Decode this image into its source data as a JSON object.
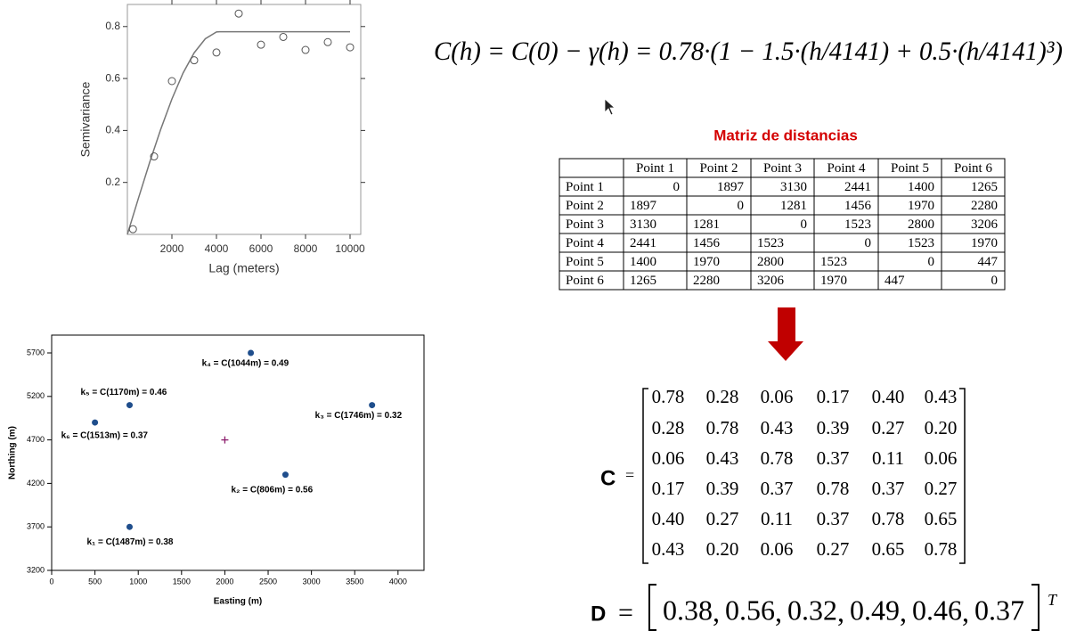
{
  "chart_data": [
    {
      "type": "scatter",
      "xlabel": "Lag (meters)",
      "ylabel": "Semivariance",
      "xlim": [
        0,
        10480
      ],
      "ylim": [
        0,
        0.885
      ],
      "xticks": [
        2000,
        4000,
        6000,
        8000,
        10000
      ],
      "yticks": [
        0.2,
        0.4,
        0.6,
        0.8
      ],
      "points": {
        "x": [
          250,
          1200,
          2000,
          3000,
          4000,
          5000,
          6000,
          7000,
          8000,
          9000,
          10000
        ],
        "y": [
          0.02,
          0.3,
          0.59,
          0.67,
          0.7,
          0.85,
          0.73,
          0.76,
          0.71,
          0.74,
          0.72
        ],
        "color": "#555555"
      },
      "fit": {
        "x": [
          0,
          500,
          1000,
          1500,
          2000,
          2500,
          3000,
          3500,
          4000,
          4141,
          10000
        ],
        "y": [
          0,
          0.14,
          0.277,
          0.405,
          0.521,
          0.621,
          0.699,
          0.753,
          0.779,
          0.78,
          0.78
        ],
        "color": "#777777"
      }
    },
    {
      "type": "scatter",
      "xlabel": "Easting (m)",
      "ylabel": "Northing (m)",
      "xlim": [
        0,
        4300
      ],
      "ylim": [
        3200,
        5905
      ],
      "xticks": [
        0,
        500,
        1000,
        1500,
        2000,
        2500,
        3000,
        3500,
        4000
      ],
      "yticks": [
        3200,
        3700,
        4200,
        4700,
        5200,
        5700
      ],
      "points": {
        "x": [
          900,
          2700,
          3700,
          2300,
          900,
          500
        ],
        "y": [
          3700,
          4300,
          5100,
          5700,
          5100,
          4900
        ],
        "color": "#1f4e8c",
        "labels": [
          "k₁ = C(1487m) = 0.38",
          "k₂ = C(806m) = 0.56",
          "k₃ = C(1746m) = 0.32",
          "k₄ = C(1044m) = 0.49",
          "k₅ = C(1170m) = 0.46",
          "k₆ = C(1513m) = 0.37"
        ]
      },
      "center": {
        "x": 2000,
        "y": 4700,
        "color": "#8b1a6b"
      }
    }
  ],
  "equation": "C(h) = C(0) − γ(h) = 0.78·(1 − 1.5·(h/4141) + 0.5·(h/4141)³)",
  "table": {
    "title": "Matriz de distancias",
    "columns": [
      "Point 1",
      "Point 2",
      "Point 3",
      "Point 4",
      "Point 5",
      "Point 6"
    ],
    "rows": [
      {
        "label": "Point 1",
        "values": [
          0,
          1897,
          3130,
          2441,
          1400,
          1265
        ]
      },
      {
        "label": "Point 2",
        "values": [
          1897,
          0,
          1281,
          1456,
          1970,
          2280
        ]
      },
      {
        "label": "Point 3",
        "values": [
          3130,
          1281,
          0,
          1523,
          2800,
          3206
        ]
      },
      {
        "label": "Point 4",
        "values": [
          2441,
          1456,
          1523,
          0,
          1523,
          1970
        ]
      },
      {
        "label": "Point 5",
        "values": [
          1400,
          1970,
          2800,
          1523,
          0,
          447
        ]
      },
      {
        "label": "Point 6",
        "values": [
          1265,
          2280,
          3206,
          1970,
          447,
          0
        ]
      }
    ]
  },
  "matrix_c": {
    "label": "C",
    "equals": "=",
    "rows": [
      [
        "0.78",
        "0.28",
        "0.06",
        "0.17",
        "0.40",
        "0.43"
      ],
      [
        "0.28",
        "0.78",
        "0.43",
        "0.39",
        "0.27",
        "0.20"
      ],
      [
        "0.06",
        "0.43",
        "0.78",
        "0.37",
        "0.11",
        "0.06"
      ],
      [
        "0.17",
        "0.39",
        "0.37",
        "0.78",
        "0.37",
        "0.27"
      ],
      [
        "0.40",
        "0.27",
        "0.11",
        "0.37",
        "0.78",
        "0.65"
      ],
      [
        "0.43",
        "0.20",
        "0.06",
        "0.27",
        "0.65",
        "0.78"
      ]
    ]
  },
  "vector_d": {
    "label": "D",
    "equals": "=",
    "values": [
      "0.38",
      "0.56",
      "0.32",
      "0.49",
      "0.46",
      "0.37"
    ],
    "separator": ",",
    "transpose": "T"
  }
}
